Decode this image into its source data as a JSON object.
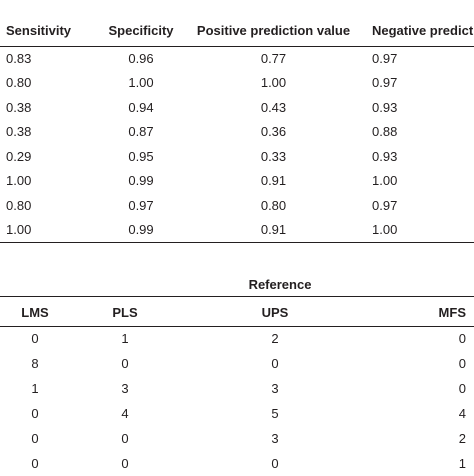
{
  "table1": {
    "headers": [
      "Sensitivity",
      "Specificity",
      "Positive prediction value",
      "Negative predict"
    ],
    "rows": [
      [
        "0.83",
        "0.96",
        "0.77",
        "0.97"
      ],
      [
        "0.80",
        "1.00",
        "1.00",
        "0.97"
      ],
      [
        "0.38",
        "0.94",
        "0.43",
        "0.93"
      ],
      [
        "0.38",
        "0.87",
        "0.36",
        "0.88"
      ],
      [
        "0.29",
        "0.95",
        "0.33",
        "0.93"
      ],
      [
        "1.00",
        "0.99",
        "0.91",
        "1.00"
      ],
      [
        "0.80",
        "0.97",
        "0.80",
        "0.97"
      ],
      [
        "1.00",
        "0.99",
        "0.91",
        "1.00"
      ]
    ]
  },
  "table2": {
    "caption": "Reference",
    "headers": [
      "LMS",
      "PLS",
      "UPS",
      "MFS"
    ],
    "rows": [
      [
        "0",
        "1",
        "2",
        "0"
      ],
      [
        "8",
        "0",
        "0",
        "0"
      ],
      [
        "1",
        "3",
        "3",
        "0"
      ],
      [
        "0",
        "4",
        "5",
        "4"
      ],
      [
        "0",
        "0",
        "3",
        "2"
      ],
      [
        "0",
        "0",
        "0",
        "1"
      ]
    ]
  }
}
